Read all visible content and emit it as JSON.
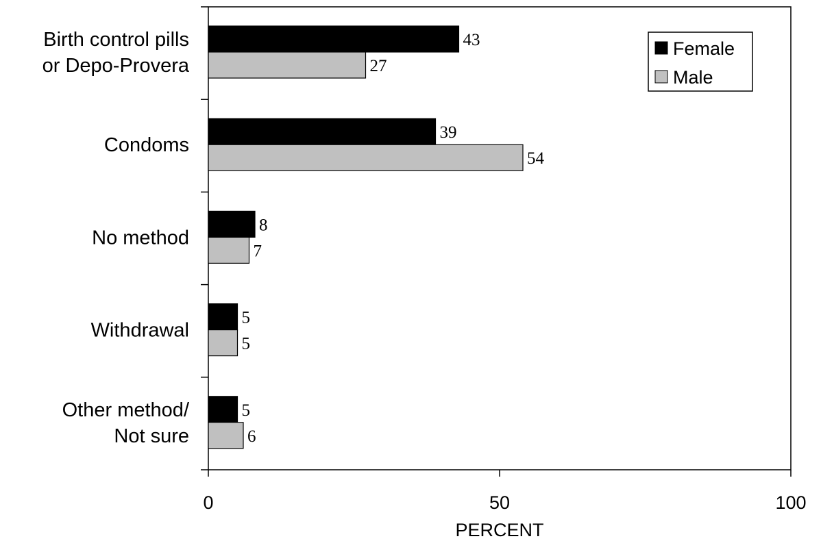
{
  "chart_data": {
    "type": "bar",
    "orientation": "horizontal",
    "categories": [
      [
        "Birth control pills",
        "or Depo-Provera"
      ],
      [
        "Condoms"
      ],
      [
        "No method"
      ],
      [
        "Withdrawal"
      ],
      [
        "Other method/",
        "Not sure"
      ]
    ],
    "series": [
      {
        "name": "Female",
        "color": "#000000",
        "values": [
          43,
          39,
          8,
          5,
          5
        ]
      },
      {
        "name": "Male",
        "color": "#c0c0c0",
        "values": [
          27,
          54,
          7,
          5,
          6
        ]
      }
    ],
    "xlabel": "PERCENT",
    "ylabel": "",
    "xlim": [
      0,
      100
    ],
    "xticks": [
      "0",
      "50",
      "100"
    ],
    "grid": false,
    "legend_position": "top-right"
  }
}
